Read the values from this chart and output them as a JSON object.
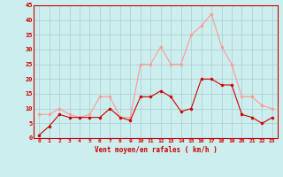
{
  "x": [
    0,
    1,
    2,
    3,
    4,
    5,
    6,
    7,
    8,
    9,
    10,
    11,
    12,
    13,
    14,
    15,
    16,
    17,
    18,
    19,
    20,
    21,
    22,
    23
  ],
  "wind_avg": [
    1,
    4,
    8,
    7,
    7,
    7,
    7,
    10,
    7,
    6,
    14,
    14,
    16,
    14,
    9,
    10,
    20,
    20,
    18,
    18,
    8,
    7,
    5,
    7
  ],
  "wind_gust": [
    8,
    8,
    10,
    8,
    7,
    8,
    14,
    14,
    7,
    7,
    25,
    25,
    31,
    25,
    25,
    35,
    38,
    42,
    31,
    25,
    14,
    14,
    11,
    10
  ],
  "avg_color": "#cc0000",
  "gust_color": "#ff9999",
  "bg_color": "#cceeee",
  "grid_color": "#aacccc",
  "xlabel": "Vent moyen/en rafales ( km/h )",
  "xlabel_color": "#cc0000",
  "ylim": [
    0,
    45
  ],
  "yticks": [
    0,
    5,
    10,
    15,
    20,
    25,
    30,
    35,
    40,
    45
  ],
  "ytick_labels": [
    "0",
    "5",
    "10",
    "15",
    "20",
    "25",
    "30",
    "35",
    "40",
    "45"
  ],
  "xtick_labels": [
    "0",
    "1",
    "2",
    "3",
    "4",
    "5",
    "6",
    "7",
    "8",
    "9",
    "10",
    "11",
    "12",
    "13",
    "14",
    "15",
    "16",
    "17",
    "18",
    "19",
    "20",
    "21",
    "22",
    "23"
  ]
}
